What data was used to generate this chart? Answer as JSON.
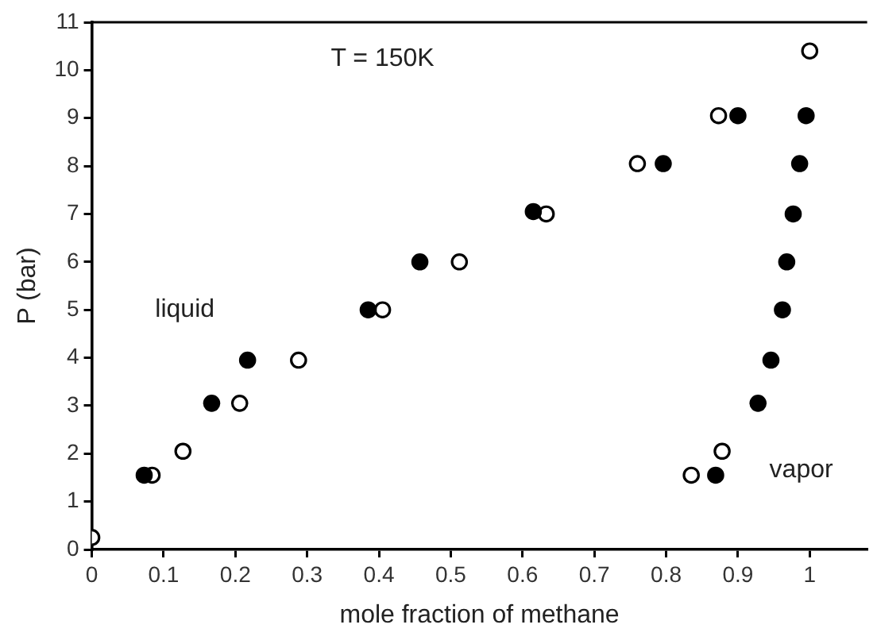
{
  "chart_data": {
    "type": "scatter",
    "xlabel": "mole fraction of methane",
    "ylabel": "P (bar)",
    "annotations": [
      "T = 150K",
      "liquid",
      "vapor"
    ],
    "xlim": [
      0,
      1.08
    ],
    "xticks": [
      0,
      0.1,
      0.2,
      0.3,
      0.4,
      0.5,
      0.6,
      0.7,
      0.8,
      0.9,
      1
    ],
    "ylim": [
      0,
      11
    ],
    "yticks": [
      0,
      1,
      2,
      3,
      4,
      5,
      6,
      7,
      8,
      9,
      10,
      11
    ],
    "grid": false,
    "legend": false,
    "marker": "circle",
    "series": [
      {
        "color": "#000000",
        "x": [
          0.073,
          0.167,
          0.217,
          0.385,
          0.457,
          0.615,
          0.796,
          0.9,
          0.869,
          0.928,
          0.946,
          0.962,
          0.968,
          0.977,
          0.986,
          0.995
        ],
        "values": [
          1.55,
          3.05,
          3.95,
          5.0,
          6.0,
          7.05,
          8.05,
          9.05,
          1.55,
          3.05,
          3.95,
          5.0,
          6.0,
          7.0,
          8.05,
          9.05
        ]
      },
      {
        "color": "#000000",
        "x": [
          0,
          0.084,
          0.127,
          0.206,
          0.288,
          0.405,
          0.512,
          0.633,
          0.76,
          0.873,
          1.0,
          0.835,
          0.878
        ],
        "values": [
          0.25,
          1.55,
          2.05,
          3.05,
          3.95,
          5.0,
          6.0,
          7.0,
          8.05,
          9.05,
          10.4,
          1.55,
          2.05
        ]
      }
    ]
  }
}
